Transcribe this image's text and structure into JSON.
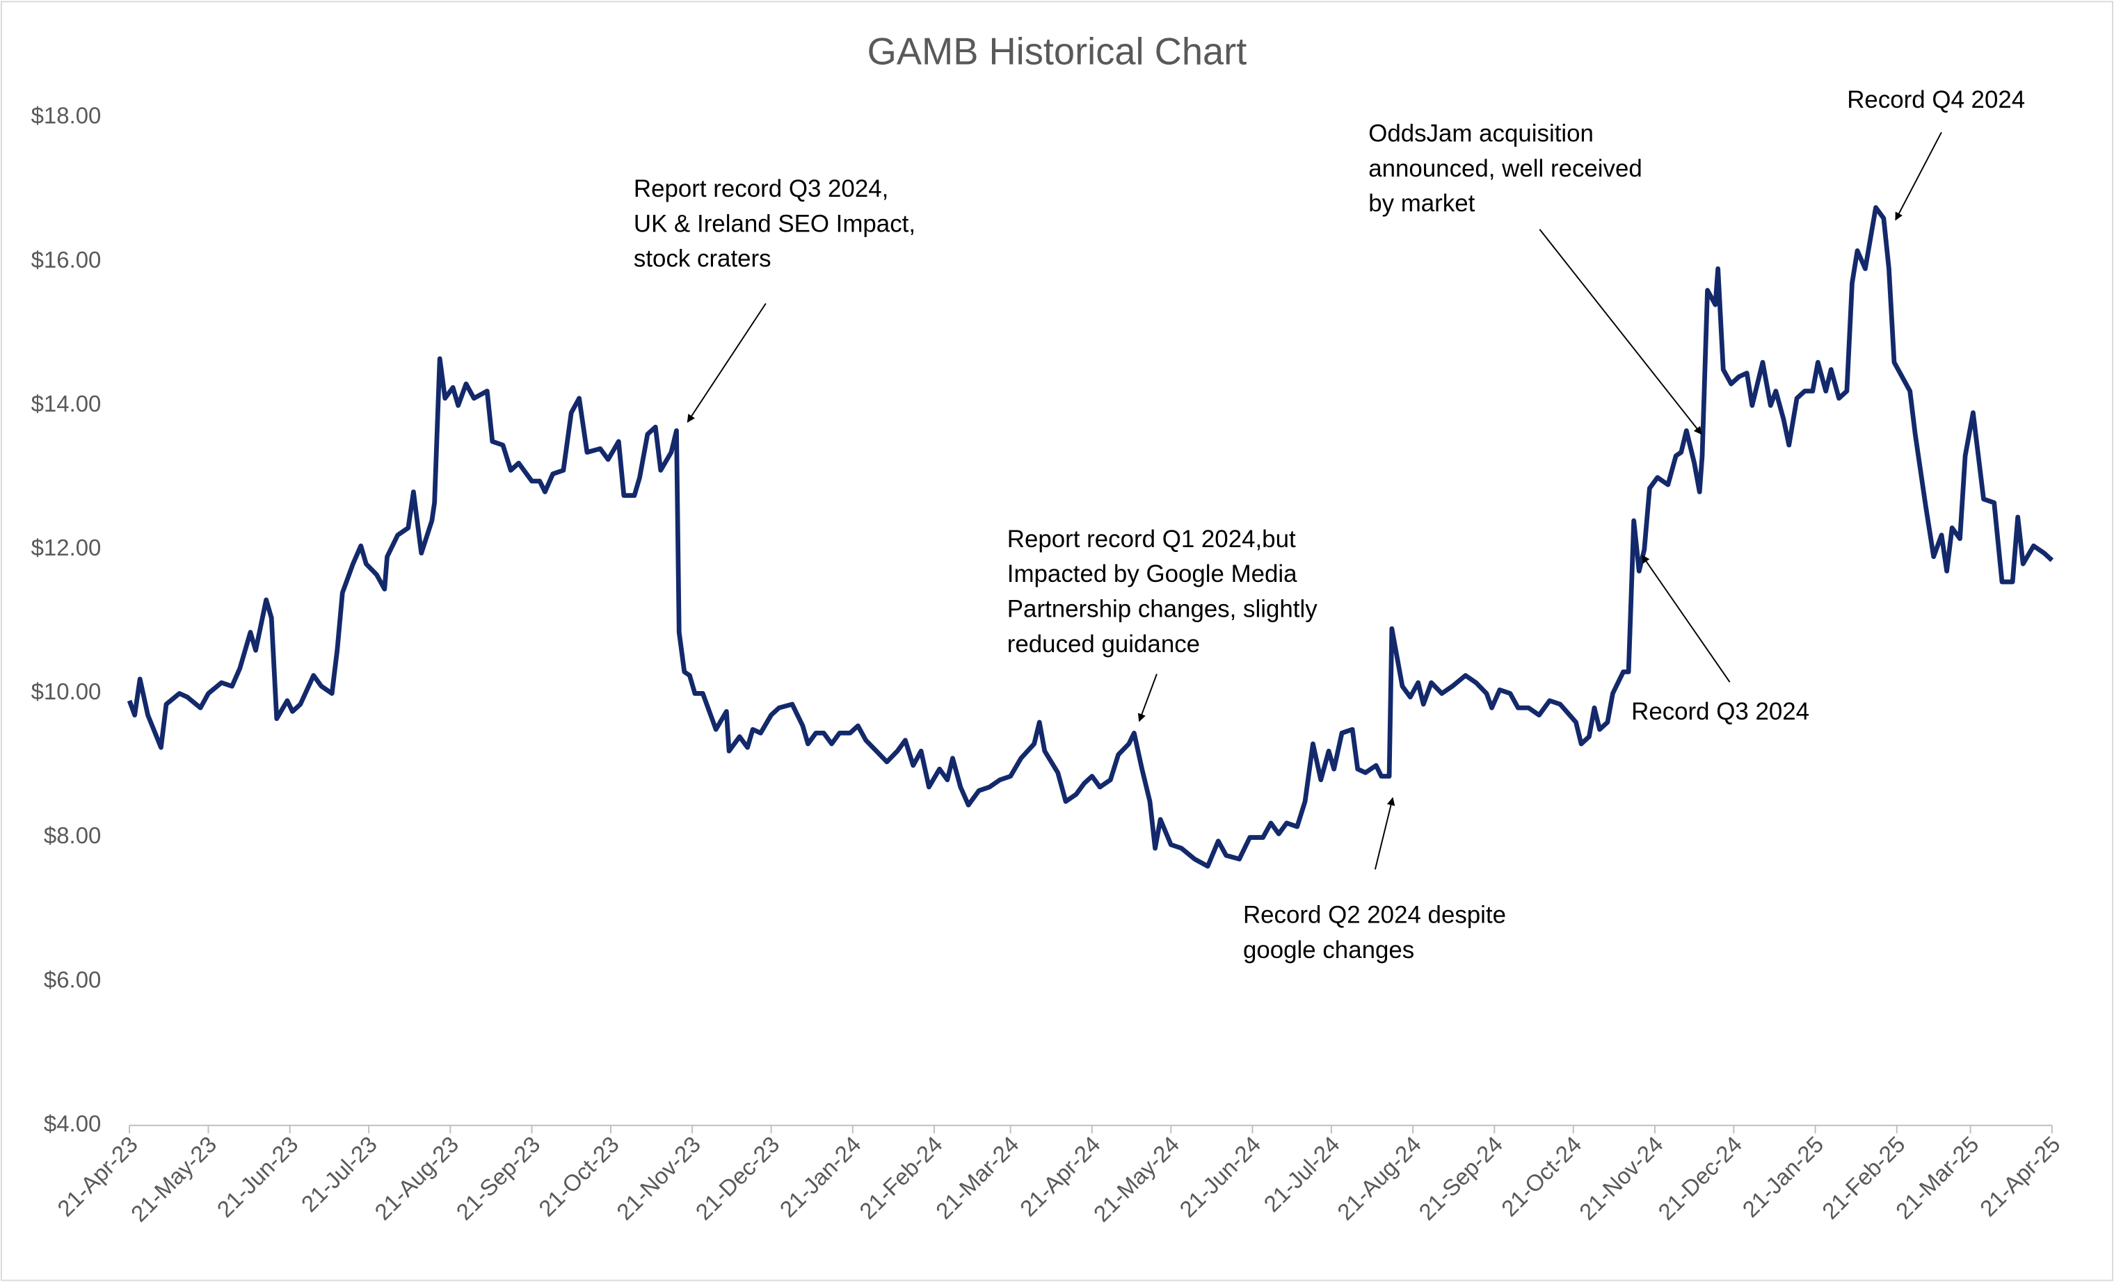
{
  "chart_data": {
    "type": "line",
    "title": "GAMB Historical Chart",
    "color": "#13296b",
    "xlim": [
      "2023-04-21",
      "2025-04-21"
    ],
    "xticks": [
      {
        "value": "2023-04-21",
        "label": "21-Apr-23"
      },
      {
        "value": "2023-05-21",
        "label": "21-May-23"
      },
      {
        "value": "2023-06-21",
        "label": "21-Jun-23"
      },
      {
        "value": "2023-07-21",
        "label": "21-Jul-23"
      },
      {
        "value": "2023-08-21",
        "label": "21-Aug-23"
      },
      {
        "value": "2023-09-21",
        "label": "21-Sep-23"
      },
      {
        "value": "2023-10-21",
        "label": "21-Oct-23"
      },
      {
        "value": "2023-11-21",
        "label": "21-Nov-23"
      },
      {
        "value": "2023-12-21",
        "label": "21-Dec-23"
      },
      {
        "value": "2024-01-21",
        "label": "21-Jan-24"
      },
      {
        "value": "2024-02-21",
        "label": "21-Feb-24"
      },
      {
        "value": "2024-03-21",
        "label": "21-Mar-24"
      },
      {
        "value": "2024-04-21",
        "label": "21-Apr-24"
      },
      {
        "value": "2024-05-21",
        "label": "21-May-24"
      },
      {
        "value": "2024-06-21",
        "label": "21-Jun-24"
      },
      {
        "value": "2024-07-21",
        "label": "21-Jul-24"
      },
      {
        "value": "2024-08-21",
        "label": "21-Aug-24"
      },
      {
        "value": "2024-09-21",
        "label": "21-Sep-24"
      },
      {
        "value": "2024-10-21",
        "label": "21-Oct-24"
      },
      {
        "value": "2024-11-21",
        "label": "21-Nov-24"
      },
      {
        "value": "2024-12-21",
        "label": "21-Dec-24"
      },
      {
        "value": "2025-01-21",
        "label": "21-Jan-25"
      },
      {
        "value": "2025-02-21",
        "label": "21-Feb-25"
      },
      {
        "value": "2025-03-21",
        "label": "21-Mar-25"
      },
      {
        "value": "2025-04-21",
        "label": "21-Apr-25"
      }
    ],
    "ylim": [
      4,
      18
    ],
    "yticks": [
      {
        "value": 4,
        "label": "$4.00"
      },
      {
        "value": 6,
        "label": "$6.00"
      },
      {
        "value": 8,
        "label": "$8.00"
      },
      {
        "value": 10,
        "label": "$10.00"
      },
      {
        "value": 12,
        "label": "$12.00"
      },
      {
        "value": 14,
        "label": "$14.00"
      },
      {
        "value": 16,
        "label": "$16.00"
      },
      {
        "value": 18,
        "label": "$18.00"
      }
    ],
    "grid": false,
    "x": [
      "2023-04-21",
      "2023-04-23",
      "2023-04-25",
      "2023-04-28",
      "2023-05-03",
      "2023-05-05",
      "2023-05-10",
      "2023-05-13",
      "2023-05-18",
      "2023-05-21",
      "2023-05-26",
      "2023-05-30",
      "2023-06-02",
      "2023-06-06",
      "2023-06-08",
      "2023-06-12",
      "2023-06-14",
      "2023-06-16",
      "2023-06-20",
      "2023-06-22",
      "2023-06-25",
      "2023-06-30",
      "2023-07-03",
      "2023-07-07",
      "2023-07-09",
      "2023-07-11",
      "2023-07-15",
      "2023-07-18",
      "2023-07-20",
      "2023-07-24",
      "2023-07-27",
      "2023-07-28",
      "2023-08-01",
      "2023-08-05",
      "2023-08-07",
      "2023-08-10",
      "2023-08-14",
      "2023-08-15",
      "2023-08-17",
      "2023-08-19",
      "2023-08-22",
      "2023-08-24",
      "2023-08-27",
      "2023-08-30",
      "2023-09-04",
      "2023-09-06",
      "2023-09-10",
      "2023-09-13",
      "2023-09-16",
      "2023-09-21",
      "2023-09-24",
      "2023-09-26",
      "2023-09-29",
      "2023-10-03",
      "2023-10-06",
      "2023-10-09",
      "2023-10-12",
      "2023-10-17",
      "2023-10-20",
      "2023-10-24",
      "2023-10-26",
      "2023-10-30",
      "2023-11-01",
      "2023-11-04",
      "2023-11-07",
      "2023-11-09",
      "2023-11-13",
      "2023-11-15",
      "2023-11-16",
      "2023-11-18",
      "2023-11-20",
      "2023-11-22",
      "2023-11-25",
      "2023-11-28",
      "2023-11-30",
      "2023-12-04",
      "2023-12-05",
      "2023-12-09",
      "2023-12-12",
      "2023-12-14",
      "2023-12-17",
      "2023-12-21",
      "2023-12-24",
      "2023-12-29",
      "2024-01-02",
      "2024-01-04",
      "2024-01-07",
      "2024-01-10",
      "2024-01-13",
      "2024-01-16",
      "2024-01-20",
      "2024-01-23",
      "2024-01-26",
      "2024-01-30",
      "2024-02-03",
      "2024-02-07",
      "2024-02-10",
      "2024-02-13",
      "2024-02-16",
      "2024-02-19",
      "2024-02-23",
      "2024-02-26",
      "2024-02-28",
      "2024-03-02",
      "2024-03-05",
      "2024-03-09",
      "2024-03-13",
      "2024-03-17",
      "2024-03-21",
      "2024-03-25",
      "2024-03-30",
      "2024-04-01",
      "2024-04-03",
      "2024-04-08",
      "2024-04-11",
      "2024-04-15",
      "2024-04-18",
      "2024-04-21",
      "2024-04-24",
      "2024-04-28",
      "2024-05-01",
      "2024-05-05",
      "2024-05-07",
      "2024-05-10",
      "2024-05-13",
      "2024-05-15",
      "2024-05-17",
      "2024-05-21",
      "2024-05-25",
      "2024-05-30",
      "2024-06-04",
      "2024-06-08",
      "2024-06-11",
      "2024-06-16",
      "2024-06-20",
      "2024-06-25",
      "2024-06-28",
      "2024-07-01",
      "2024-07-04",
      "2024-07-08",
      "2024-07-11",
      "2024-07-14",
      "2024-07-17",
      "2024-07-20",
      "2024-07-22",
      "2024-07-25",
      "2024-07-29",
      "2024-07-31",
      "2024-08-03",
      "2024-08-07",
      "2024-08-09",
      "2024-08-12",
      "2024-08-13",
      "2024-08-17",
      "2024-08-20",
      "2024-08-23",
      "2024-08-25",
      "2024-08-28",
      "2024-09-01",
      "2024-09-05",
      "2024-09-10",
      "2024-09-14",
      "2024-09-18",
      "2024-09-20",
      "2024-09-23",
      "2024-09-27",
      "2024-09-30",
      "2024-10-04",
      "2024-10-08",
      "2024-10-12",
      "2024-10-16",
      "2024-10-22",
      "2024-10-24",
      "2024-10-27",
      "2024-10-29",
      "2024-10-31",
      "2024-11-03",
      "2024-11-05",
      "2024-11-09",
      "2024-11-11",
      "2024-11-13",
      "2024-11-15",
      "2024-11-17",
      "2024-11-19",
      "2024-11-22",
      "2024-11-26",
      "2024-11-29",
      "2024-12-01",
      "2024-12-03",
      "2024-12-06",
      "2024-12-08",
      "2024-12-09",
      "2024-12-11",
      "2024-12-14",
      "2024-12-15",
      "2024-12-17",
      "2024-12-20",
      "2024-12-23",
      "2024-12-26",
      "2024-12-28",
      "2025-01-01",
      "2025-01-04",
      "2025-01-06",
      "2025-01-09",
      "2025-01-11",
      "2025-01-14",
      "2025-01-17",
      "2025-01-20",
      "2025-01-22",
      "2025-01-25",
      "2025-01-27",
      "2025-01-30",
      "2025-02-02",
      "2025-02-04",
      "2025-02-06",
      "2025-02-09",
      "2025-02-13",
      "2025-02-16",
      "2025-02-18",
      "2025-02-20",
      "2025-02-23",
      "2025-02-26",
      "2025-02-28",
      "2025-03-04",
      "2025-03-07",
      "2025-03-10",
      "2025-03-12",
      "2025-03-14",
      "2025-03-17",
      "2025-03-19",
      "2025-03-22",
      "2025-03-26",
      "2025-03-30",
      "2025-04-02",
      "2025-04-06",
      "2025-04-08",
      "2025-04-10",
      "2025-04-14",
      "2025-04-18",
      "2025-04-21"
    ],
    "values": [
      9.9,
      9.7,
      10.2,
      9.7,
      9.25,
      9.85,
      10.0,
      9.95,
      9.8,
      10.0,
      10.15,
      10.1,
      10.35,
      10.85,
      10.6,
      11.3,
      11.05,
      9.65,
      9.9,
      9.75,
      9.85,
      10.25,
      10.1,
      10.0,
      10.6,
      11.4,
      11.8,
      12.05,
      11.8,
      11.65,
      11.45,
      11.9,
      12.2,
      12.3,
      12.8,
      11.95,
      12.4,
      12.65,
      14.65,
      14.1,
      14.25,
      14.0,
      14.3,
      14.1,
      14.2,
      13.5,
      13.45,
      13.1,
      13.2,
      12.95,
      12.95,
      12.8,
      13.05,
      13.1,
      13.9,
      14.1,
      13.35,
      13.4,
      13.25,
      13.5,
      12.75,
      12.75,
      13.0,
      13.6,
      13.7,
      13.1,
      13.35,
      13.65,
      10.85,
      10.3,
      10.25,
      10.0,
      10.0,
      9.7,
      9.5,
      9.75,
      9.2,
      9.4,
      9.25,
      9.5,
      9.45,
      9.7,
      9.8,
      9.85,
      9.55,
      9.3,
      9.45,
      9.45,
      9.3,
      9.45,
      9.45,
      9.55,
      9.35,
      9.2,
      9.05,
      9.2,
      9.35,
      9.0,
      9.2,
      8.7,
      8.95,
      8.8,
      9.1,
      8.7,
      8.45,
      8.65,
      8.7,
      8.8,
      8.85,
      9.1,
      9.3,
      9.6,
      9.2,
      8.9,
      8.5,
      8.6,
      8.75,
      8.85,
      8.7,
      8.8,
      9.15,
      9.3,
      9.45,
      8.95,
      8.5,
      7.85,
      8.25,
      7.9,
      7.85,
      7.7,
      7.6,
      7.95,
      7.75,
      7.7,
      8.0,
      8.0,
      8.2,
      8.05,
      8.2,
      8.15,
      8.5,
      9.3,
      8.8,
      9.2,
      8.95,
      9.45,
      9.5,
      8.95,
      8.9,
      9.0,
      8.85,
      8.85,
      10.9,
      10.1,
      9.95,
      10.15,
      9.85,
      10.15,
      10.0,
      10.1,
      10.25,
      10.15,
      10.0,
      9.8,
      10.05,
      10.0,
      9.8,
      9.8,
      9.7,
      9.9,
      9.85,
      9.6,
      9.3,
      9.4,
      9.8,
      9.5,
      9.6,
      10.0,
      10.3,
      10.3,
      12.4,
      11.7,
      12.0,
      12.85,
      13.0,
      12.9,
      13.3,
      13.35,
      13.65,
      13.2,
      12.8,
      13.3,
      15.6,
      15.4,
      15.9,
      14.5,
      14.3,
      14.4,
      14.45,
      14.0,
      14.6,
      14.0,
      14.2,
      13.8,
      13.45,
      14.1,
      14.2,
      14.2,
      14.6,
      14.2,
      14.5,
      14.1,
      14.2,
      15.7,
      16.15,
      15.9,
      16.75,
      16.6,
      15.9,
      14.6,
      14.4,
      14.2,
      13.6,
      12.6,
      11.9,
      12.2,
      11.7,
      12.3,
      12.15,
      13.3,
      13.9,
      12.7,
      12.65,
      11.55,
      11.55,
      12.45,
      11.8,
      12.05,
      11.95,
      11.85
    ],
    "annotations": [
      {
        "text": [
          "Report record Q3 2024,",
          "UK & Ireland SEO Impact,",
          "stock craters"
        ]
      },
      {
        "text": [
          "OddsJam acquisition",
          "announced, well received",
          "by market"
        ]
      },
      {
        "text": [
          "Record Q4 2024"
        ]
      },
      {
        "text": [
          "Report record Q1 2024,but",
          "Impacted by Google Media",
          "Partnership changes, slightly",
          "reduced guidance"
        ]
      },
      {
        "text": [
          "Record Q3 2024"
        ]
      },
      {
        "text": [
          "Record Q2 2024 despite",
          "google changes"
        ]
      }
    ]
  }
}
